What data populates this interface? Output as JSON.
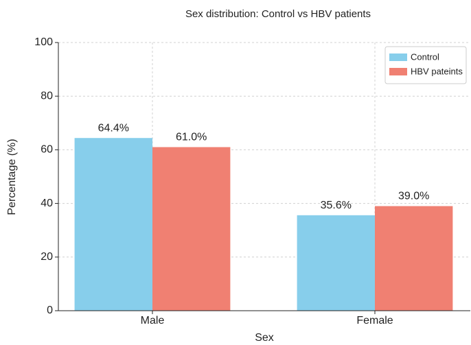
{
  "chart_data": {
    "type": "bar",
    "title": "Sex distribution: Control vs HBV patients",
    "x_label": "Sex",
    "y_label": "Percentage (%)",
    "categories": [
      "Male",
      "Female"
    ],
    "series": [
      {
        "name": "Control",
        "color": "#87ceeb",
        "values": [
          64.4,
          35.6
        ],
        "value_labels": [
          "64.4%",
          "35.6%"
        ]
      },
      {
        "name": "HBV pateints",
        "color": "#f08072",
        "values": [
          61.0,
          39.0
        ],
        "value_labels": [
          "61.0%",
          "39.0%"
        ]
      }
    ],
    "ylim": [
      0,
      100
    ],
    "yticks": [
      0,
      20,
      40,
      60,
      80,
      100
    ],
    "grid": true,
    "legend": "upper right"
  }
}
